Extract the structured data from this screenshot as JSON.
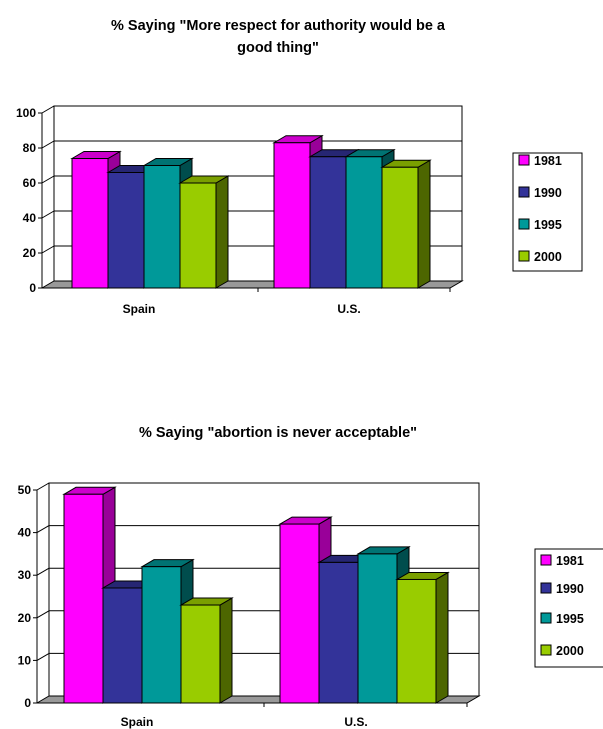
{
  "chart_data": [
    {
      "type": "bar",
      "title_lines": [
        "% Saying \"More respect for authority would be a",
        "good thing\""
      ],
      "categories": [
        "Spain",
        "U.S."
      ],
      "series": [
        {
          "name": "1981",
          "values": [
            74,
            83
          ]
        },
        {
          "name": "1990",
          "values": [
            66,
            75
          ]
        },
        {
          "name": "1995",
          "values": [
            70,
            75
          ]
        },
        {
          "name": "2000",
          "values": [
            60,
            69
          ]
        }
      ],
      "ylim": [
        0,
        100
      ],
      "yticks": [
        "0",
        "20",
        "40",
        "60",
        "80",
        "100"
      ],
      "legend_position": "right",
      "grid": true
    },
    {
      "type": "bar",
      "title_lines": [
        "% Saying \"abortion is never acceptable\""
      ],
      "categories": [
        "Spain",
        "U.S."
      ],
      "series": [
        {
          "name": "1981",
          "values": [
            49,
            42
          ]
        },
        {
          "name": "1990",
          "values": [
            27,
            33
          ]
        },
        {
          "name": "1995",
          "values": [
            32,
            35
          ]
        },
        {
          "name": "2000",
          "values": [
            23,
            29
          ]
        }
      ],
      "ylim": [
        0,
        50
      ],
      "yticks": [
        "0",
        "10",
        "20",
        "30",
        "40",
        "50"
      ],
      "legend_position": "right",
      "grid": true
    }
  ],
  "colors": {
    "series_front": [
      "#ff00ff",
      "#333399",
      "#009999",
      "#99cc00"
    ],
    "series_top": [
      "#cc00cc",
      "#262673",
      "#007373",
      "#7a9f00"
    ],
    "series_side": [
      "#990099",
      "#1a1a4d",
      "#004d4d",
      "#4d6600"
    ],
    "floor": "#999999",
    "grid": "#000000"
  }
}
